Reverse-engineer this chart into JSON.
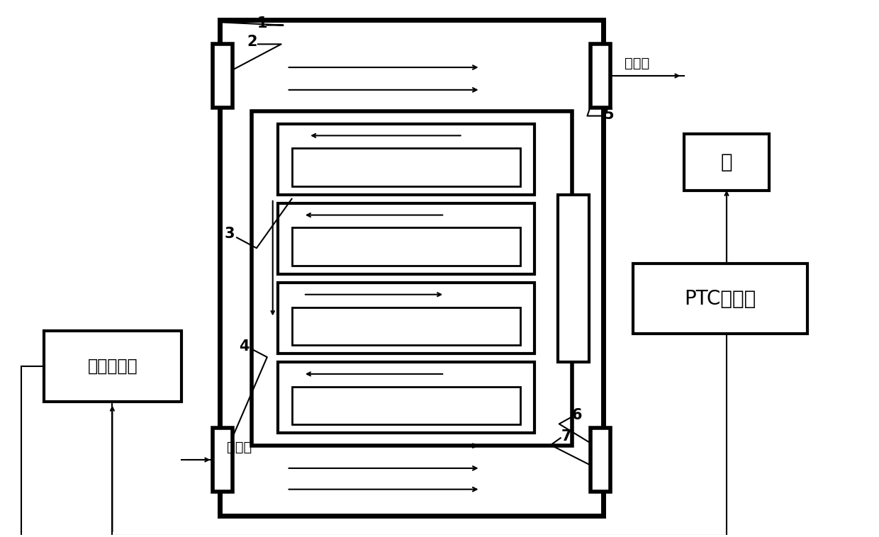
{
  "bg_color": "#ffffff",
  "pump_label": "泵",
  "ptc_label": "PTC加热器",
  "hex_label": "液体换热器",
  "coolant_top": "冷却液",
  "coolant_bot": "冷却液"
}
